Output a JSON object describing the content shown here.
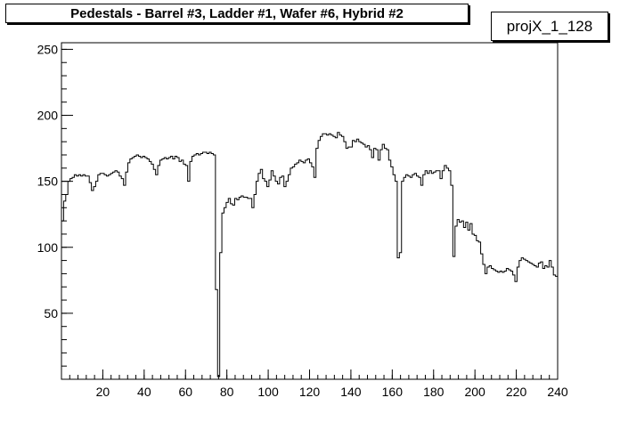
{
  "chart_data": {
    "type": "line",
    "style": "step",
    "title": "Pedestals - Barrel #3, Ladder #1, Wafer #6, Hybrid #2",
    "histogram_name": "projX_1_128",
    "xlabel": "",
    "ylabel": "",
    "xlim": [
      0,
      240
    ],
    "ylim": [
      0,
      255
    ],
    "xticks": [
      20,
      40,
      60,
      80,
      100,
      120,
      140,
      160,
      180,
      200,
      220,
      240
    ],
    "yticks": [
      50,
      100,
      150,
      200,
      250
    ],
    "grid": false,
    "legend": "none",
    "series": [
      {
        "color": "#000000",
        "values": [
          120,
          135,
          140,
          150,
          152,
          153,
          155,
          154,
          155,
          154,
          155,
          154,
          154,
          149,
          143,
          146,
          150,
          155,
          156,
          156,
          155,
          154,
          155,
          156,
          157,
          158,
          157,
          154,
          152,
          147,
          157,
          164,
          167,
          168,
          169,
          170,
          169,
          168,
          169,
          168,
          167,
          165,
          163,
          159,
          155,
          162,
          166,
          167,
          168,
          167,
          168,
          169,
          167,
          169,
          168,
          165,
          166,
          163,
          162,
          150,
          165,
          169,
          170,
          171,
          170,
          171,
          172,
          172,
          171,
          172,
          171,
          170,
          68,
          2,
          96,
          126,
          130,
          134,
          137,
          133,
          132,
          137,
          136,
          138,
          139,
          138,
          138,
          137,
          137,
          130,
          140,
          150,
          156,
          159,
          152,
          150,
          146,
          151,
          158,
          154,
          150,
          148,
          153,
          154,
          146,
          150,
          155,
          160,
          161,
          163,
          164,
          166,
          165,
          164,
          166,
          167,
          164,
          161,
          153,
          175,
          181,
          184,
          186,
          186,
          185,
          186,
          185,
          184,
          183,
          187,
          185,
          184,
          180,
          175,
          176,
          176,
          181,
          180,
          182,
          180,
          179,
          178,
          176,
          177,
          174,
          168,
          175,
          174,
          166,
          174,
          178,
          175,
          174,
          166,
          161,
          155,
          150,
          92,
          96,
          150,
          153,
          155,
          154,
          153,
          155,
          156,
          154,
          153,
          147,
          155,
          158,
          156,
          158,
          156,
          157,
          158,
          158,
          152,
          158,
          162,
          160,
          158,
          147,
          93,
          116,
          121,
          119,
          120,
          115,
          119,
          113,
          118,
          110,
          109,
          105,
          104,
          95,
          87,
          80,
          85,
          86,
          84,
          83,
          82,
          81,
          82,
          81,
          82,
          84,
          83,
          82,
          79,
          74,
          85,
          90,
          92,
          91,
          90,
          89,
          88,
          87,
          86,
          85,
          88,
          89,
          84,
          86,
          85,
          90,
          85,
          79,
          78
        ]
      }
    ]
  }
}
